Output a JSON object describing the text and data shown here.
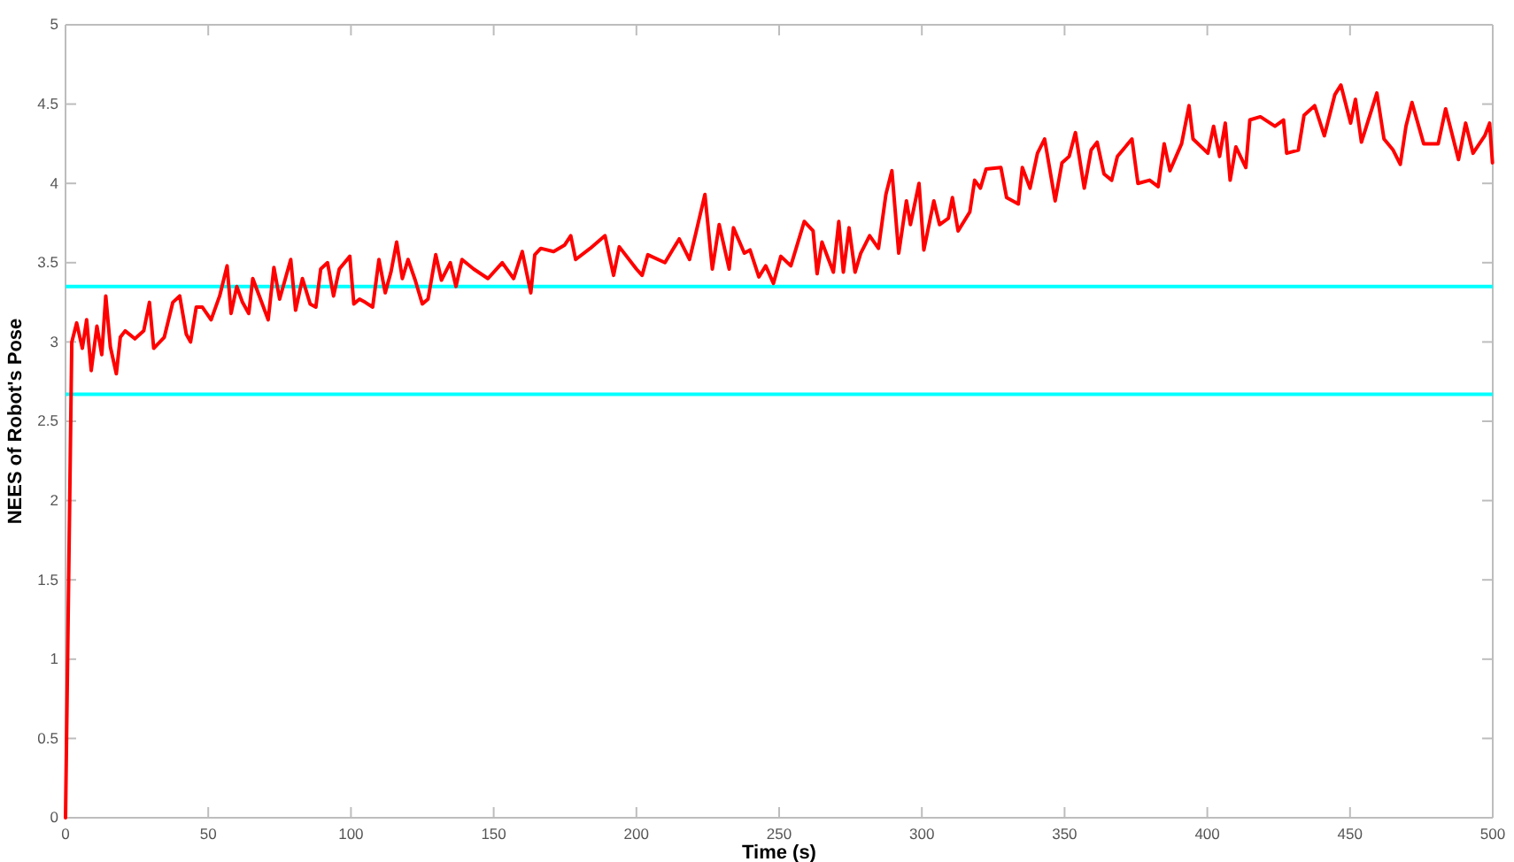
{
  "chart_data": {
    "type": "line",
    "xlabel": "Time (s)",
    "ylabel": "NEES of Robot's Pose",
    "xlim": [
      0,
      500
    ],
    "ylim": [
      0,
      5
    ],
    "xticks": [
      0,
      50,
      100,
      150,
      200,
      250,
      300,
      350,
      400,
      450,
      500
    ],
    "yticks": [
      0,
      0.5,
      1,
      1.5,
      2,
      2.5,
      3,
      3.5,
      4,
      4.5,
      5
    ],
    "grid": false,
    "marker": "none",
    "line_style": "solid",
    "ref_lines": [
      {
        "axis": "y",
        "value": 3.35,
        "color": "#00ffff"
      },
      {
        "axis": "y",
        "value": 2.67,
        "color": "#00ffff"
      }
    ],
    "series": [
      {
        "color": "#ff0000",
        "x": [
          0,
          2.2,
          3.9,
          5.9,
          7.4,
          9,
          11,
          12.7,
          14.1,
          15.7,
          17.8,
          19.2,
          20.9,
          24.3,
          27.4,
          29.4,
          30.9,
          34.6,
          37.6,
          40,
          42.3,
          43.8,
          45.8,
          47.9,
          51,
          54,
          56.6,
          58,
          60,
          62,
          64.2,
          65.6,
          71,
          73,
          75,
          78.9,
          80.6,
          83,
          85.7,
          87.7,
          89.4,
          91.8,
          93.9,
          95.9,
          99.6,
          101,
          103,
          105,
          107.6,
          109.8,
          112,
          114,
          116,
          118,
          120,
          122.5,
          125,
          127,
          129.7,
          131.7,
          134.8,
          136.8,
          138.9,
          143,
          148,
          153,
          157,
          160,
          163,
          164.4,
          166.5,
          171,
          174.8,
          177,
          178.7,
          183.8,
          189,
          192,
          194,
          200,
          202,
          204,
          210,
          215,
          218.6,
          221,
          224,
          226.6,
          229,
          232.5,
          234,
          237.8,
          239.8,
          242.9,
          245.3,
          248,
          250.6,
          254.1,
          258.8,
          261.9,
          263.3,
          265,
          269,
          270.9,
          272.5,
          274.5,
          276.6,
          278.6,
          281.7,
          284.8,
          287.4,
          289.5,
          291.9,
          294.6,
          296,
          299,
          300.7,
          304.2,
          306.2,
          309.3,
          310.7,
          312.7,
          316.8,
          318.5,
          320.5,
          322.5,
          327.7,
          329.7,
          333.8,
          335.2,
          337.9,
          340.5,
          343,
          346.7,
          349.1,
          351.6,
          353.8,
          356.9,
          359.3,
          361.4,
          363.8,
          366.5,
          368.5,
          373.6,
          375.7,
          379.8,
          382.8,
          384.9,
          386.9,
          391,
          393.6,
          395,
          400.2,
          402.2,
          404.3,
          406.3,
          408,
          410,
          413.5,
          414.9,
          418.6,
          423.7,
          426.7,
          427.8,
          431.9,
          433.9,
          437.6,
          441,
          444.7,
          446.8,
          450.2,
          451.9,
          454,
          459.4,
          461.9,
          465.1,
          467.6,
          469.6,
          471.7,
          475.8,
          480.9,
          483.5,
          488,
          490.5,
          493.1,
          497.2,
          498.9,
          499.9
        ],
        "values": [
          0,
          3.0,
          3.12,
          2.96,
          3.14,
          2.82,
          3.1,
          2.92,
          3.29,
          2.97,
          2.8,
          3.03,
          3.07,
          3.02,
          3.07,
          3.25,
          2.96,
          3.03,
          3.25,
          3.29,
          3.05,
          3.0,
          3.22,
          3.22,
          3.14,
          3.29,
          3.48,
          3.18,
          3.35,
          3.25,
          3.18,
          3.4,
          3.14,
          3.47,
          3.27,
          3.52,
          3.2,
          3.4,
          3.24,
          3.22,
          3.46,
          3.5,
          3.29,
          3.46,
          3.54,
          3.24,
          3.27,
          3.25,
          3.22,
          3.52,
          3.31,
          3.44,
          3.63,
          3.4,
          3.52,
          3.39,
          3.24,
          3.27,
          3.55,
          3.39,
          3.5,
          3.35,
          3.52,
          3.46,
          3.4,
          3.5,
          3.4,
          3.57,
          3.31,
          3.55,
          3.59,
          3.57,
          3.61,
          3.67,
          3.52,
          3.59,
          3.67,
          3.42,
          3.6,
          3.46,
          3.42,
          3.55,
          3.5,
          3.65,
          3.52,
          3.7,
          3.93,
          3.46,
          3.74,
          3.46,
          3.72,
          3.56,
          3.58,
          3.41,
          3.48,
          3.37,
          3.54,
          3.48,
          3.76,
          3.7,
          3.43,
          3.63,
          3.44,
          3.76,
          3.44,
          3.72,
          3.44,
          3.56,
          3.67,
          3.59,
          3.93,
          4.08,
          3.56,
          3.89,
          3.74,
          4.0,
          3.58,
          3.89,
          3.74,
          3.78,
          3.91,
          3.7,
          3.82,
          4.02,
          3.97,
          4.09,
          4.1,
          3.91,
          3.87,
          4.1,
          3.97,
          4.19,
          4.28,
          3.89,
          4.13,
          4.17,
          4.32,
          3.97,
          4.21,
          4.26,
          4.06,
          4.02,
          4.17,
          4.28,
          4.0,
          4.02,
          3.98,
          4.25,
          4.08,
          4.25,
          4.49,
          4.28,
          4.19,
          4.36,
          4.17,
          4.38,
          4.02,
          4.23,
          4.1,
          4.4,
          4.42,
          4.36,
          4.4,
          4.19,
          4.21,
          4.43,
          4.49,
          4.3,
          4.56,
          4.62,
          4.38,
          4.53,
          4.26,
          4.57,
          4.28,
          4.21,
          4.12,
          4.36,
          4.51,
          4.25,
          4.25,
          4.47,
          4.15,
          4.38,
          4.19,
          4.3,
          4.38,
          4.13
        ]
      }
    ]
  }
}
